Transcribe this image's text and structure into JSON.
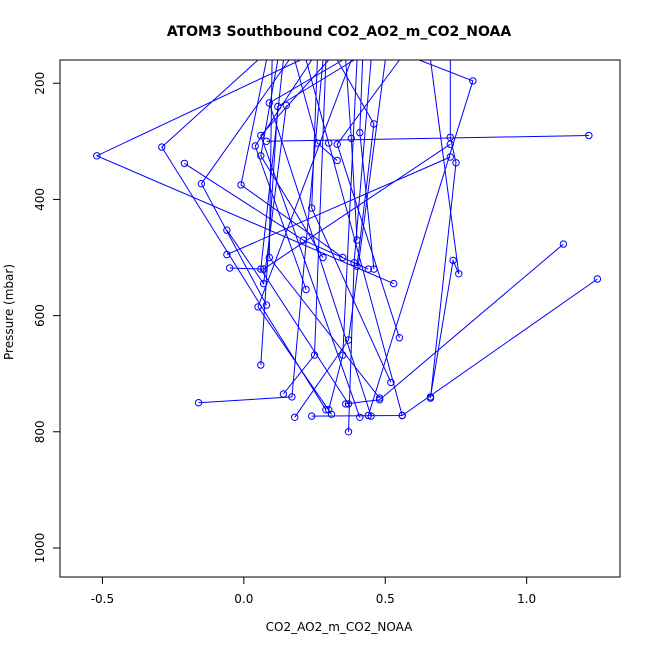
{
  "chart_data": {
    "type": "line",
    "title": "ATOM3 Southbound CO2_AO2_m_CO2_NOAA",
    "xlabel": "CO2_AO2_m_CO2_NOAA",
    "ylabel": "Pressure (mbar)",
    "xlim": [
      -0.65,
      1.33
    ],
    "ylim": [
      1050,
      160
    ],
    "y_reversed": true,
    "x_ticks": [
      -0.5,
      0.0,
      0.5,
      1.0
    ],
    "x_tick_labels": [
      "-0.5",
      "0.0",
      "0.5",
      "1.0"
    ],
    "y_ticks": [
      200,
      400,
      600,
      800,
      1000
    ],
    "y_tick_labels": [
      "200",
      "400",
      "600",
      "800",
      "1000"
    ],
    "series_color": "#0000ff",
    "marker": "open-circle",
    "grid": false,
    "series": [
      {
        "points": [
          [
            0.2,
            160
          ],
          [
            -0.52,
            325
          ],
          [
            0.53,
            545
          ]
        ]
      },
      {
        "points": [
          [
            0.05,
            160
          ],
          [
            -0.29,
            310
          ],
          [
            0.29,
            762
          ]
        ]
      },
      {
        "points": [
          [
            0.28,
            160
          ],
          [
            0.17,
            740
          ],
          [
            -0.16,
            750
          ]
        ]
      },
      {
        "points": [
          [
            0.4,
            160
          ],
          [
            0.35,
            668
          ],
          [
            0.3,
            762
          ]
        ]
      },
      {
        "points": [
          [
            0.62,
            160
          ],
          [
            0.81,
            196
          ],
          [
            0.44,
            772
          ]
        ]
      },
      {
        "points": [
          [
            0.45,
            160
          ],
          [
            0.39,
            509
          ],
          [
            0.37,
            800
          ]
        ]
      },
      {
        "points": [
          [
            0.14,
            160
          ],
          [
            0.06,
            520
          ],
          [
            0.37,
            752
          ]
        ]
      },
      {
        "points": [
          [
            0.1,
            160
          ],
          [
            0.09,
            500
          ],
          [
            0.48,
            742
          ]
        ]
      },
      {
        "points": [
          [
            0.38,
            160
          ],
          [
            0.05,
            585
          ],
          [
            0.31,
            770
          ]
        ]
      },
      {
        "points": [
          [
            0.22,
            160
          ],
          [
            0.3,
            303
          ],
          [
            0.56,
            772
          ]
        ]
      },
      {
        "points": [
          [
            0.3,
            160
          ],
          [
            0.06,
            290
          ],
          [
            0.41,
            775
          ]
        ]
      },
      {
        "points": [
          [
            0.35,
            160
          ],
          [
            0.09,
            234
          ],
          [
            0.45,
            773
          ]
        ]
      },
      {
        "points": [
          [
            0.5,
            160
          ],
          [
            0.37,
            642
          ],
          [
            0.18,
            775
          ]
        ]
      },
      {
        "points": [
          [
            0.16,
            160
          ],
          [
            -0.15,
            373
          ],
          [
            0.08,
            582
          ]
        ]
      },
      {
        "points": [
          [
            0.24,
            160
          ],
          [
            0.04,
            308
          ],
          [
            0.22,
            555
          ]
        ]
      },
      {
        "points": [
          [
            0.12,
            160
          ],
          [
            0.06,
            325
          ],
          [
            0.28,
            500
          ]
        ]
      },
      {
        "points": [
          [
            0.08,
            160
          ],
          [
            -0.01,
            375
          ],
          [
            0.35,
            500
          ]
        ]
      },
      {
        "points": [
          [
            0.26,
            160
          ],
          [
            0.24,
            415
          ],
          [
            0.52,
            715
          ]
        ]
      },
      {
        "points": [
          [
            0.18,
            160
          ],
          [
            0.26,
            303
          ],
          [
            0.33,
            333
          ]
        ]
      },
      {
        "points": [
          [
            0.33,
            160
          ],
          [
            0.46,
            270
          ],
          [
            0.4,
            515
          ]
        ]
      },
      {
        "points": [
          [
            0.42,
            160
          ],
          [
            0.41,
            285
          ],
          [
            0.46,
            520
          ]
        ]
      },
      {
        "points": [
          [
            0.55,
            160
          ],
          [
            0.33,
            305
          ],
          [
            0.55,
            638
          ]
        ]
      },
      {
        "points": [
          [
            0.36,
            160
          ],
          [
            0.38,
            295
          ],
          [
            0.4,
            470
          ]
        ]
      },
      {
        "points": [
          [
            0.66,
            160
          ],
          [
            0.76,
            528
          ],
          [
            0.74,
            505
          ],
          [
            0.66,
            740
          ]
        ]
      },
      {
        "points": [
          [
            0.73,
            160
          ],
          [
            0.73,
            293
          ],
          [
            0.75,
            337
          ],
          [
            0.66,
            742
          ]
        ]
      },
      {
        "points": [
          [
            0.39,
            160
          ],
          [
            0.12,
            240
          ],
          [
            0.06,
            685
          ]
        ]
      },
      {
        "points": [
          [
            0.29,
            160
          ],
          [
            0.25,
            668
          ],
          [
            0.14,
            735
          ]
        ]
      },
      {
        "points": [
          [
            -0.21,
            338
          ],
          [
            0.21,
            470
          ],
          [
            0.44,
            520
          ]
        ]
      },
      {
        "points": [
          [
            1.25,
            537
          ],
          [
            0.56,
            772
          ],
          [
            0.24,
            773
          ]
        ]
      },
      {
        "points": [
          [
            1.13,
            477
          ],
          [
            0.48,
            745
          ],
          [
            0.36,
            752
          ]
        ]
      },
      {
        "points": [
          [
            1.22,
            290
          ],
          [
            0.08,
            300
          ]
        ]
      },
      {
        "points": [
          [
            -0.05,
            518
          ],
          [
            0.07,
            520
          ],
          [
            0.73,
            305
          ]
        ]
      },
      {
        "points": [
          [
            -0.06,
            453
          ],
          [
            0.07,
            545
          ],
          [
            0.15,
            238
          ]
        ]
      },
      {
        "points": [
          [
            -0.06,
            495
          ],
          [
            0.73,
            327
          ]
        ]
      }
    ]
  }
}
